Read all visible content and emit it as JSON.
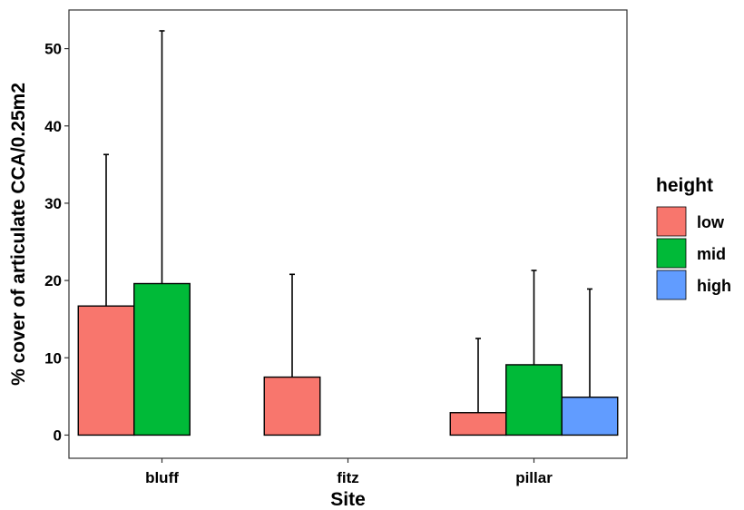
{
  "chart_data": {
    "type": "bar",
    "xlabel": "Site",
    "ylabel": "% cover of articulate CCA/0.25m2",
    "categories": [
      "bluff",
      "fitz",
      "pillar"
    ],
    "ylim": [
      -3,
      55
    ],
    "yticks": [
      0,
      10,
      20,
      30,
      40,
      50
    ],
    "grid": false,
    "legend": {
      "title": "height",
      "placement": "right"
    },
    "series": [
      {
        "name": "low",
        "color": "#F8766D",
        "values": [
          16.7,
          7.5,
          2.9
        ],
        "error_upper": [
          36.3,
          20.8,
          12.5
        ]
      },
      {
        "name": "mid",
        "color": "#00BA38",
        "values": [
          19.6,
          0,
          9.1
        ],
        "error_upper": [
          52.3,
          null,
          21.3
        ]
      },
      {
        "name": "high",
        "color": "#619CFF",
        "values": [
          0,
          0,
          4.9
        ],
        "error_upper": [
          null,
          null,
          18.9
        ]
      }
    ]
  }
}
